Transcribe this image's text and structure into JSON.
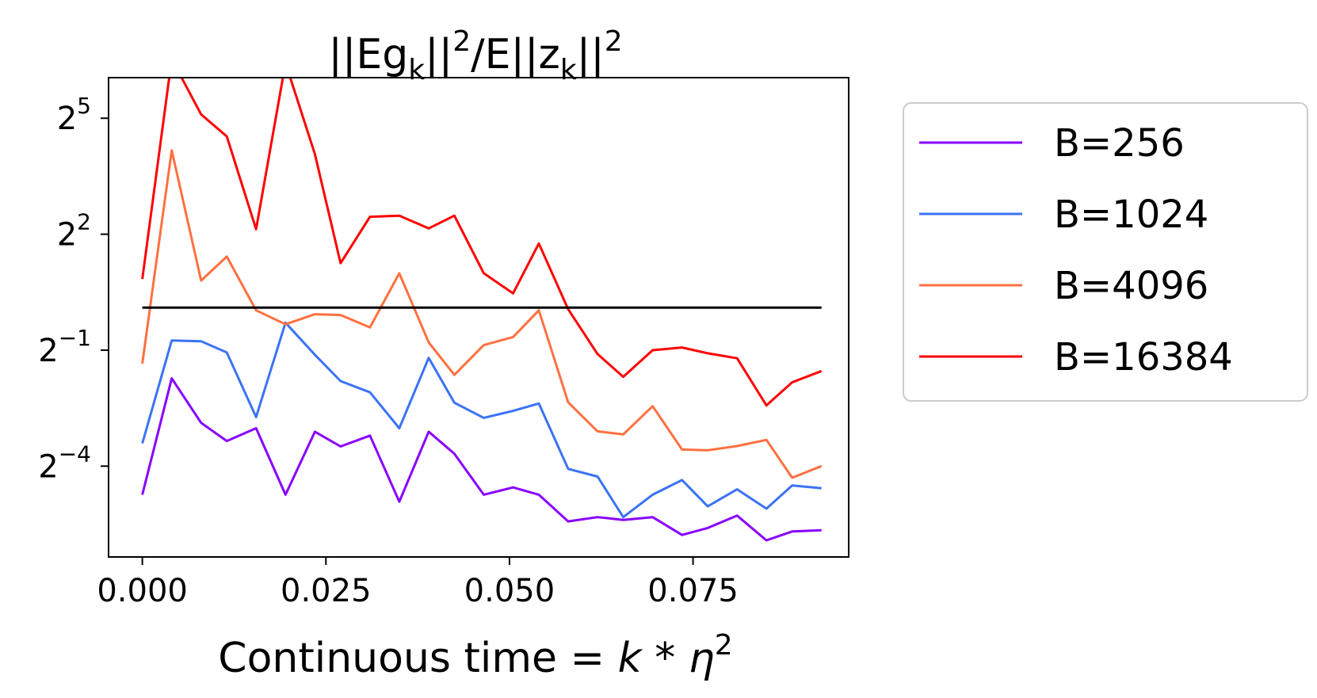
{
  "chart_data": {
    "type": "line",
    "title": "||Eg_k||^2/E||z_k||^2",
    "title_parts": {
      "a": "||Eg",
      "k1": "k",
      "b": "||",
      "sq1": "2",
      "c": "/E||z",
      "k2": "k",
      "d": "||",
      "sq2": "2"
    },
    "xlabel": "Continuous time  = k * η^2",
    "xlabel_parts": {
      "text": "Continuous time ",
      "eq": "= ",
      "k": "k",
      "star": " * ",
      "eta": "η",
      "sq": "2"
    },
    "ylabel": "",
    "y_scale": "log2",
    "xlim": [
      -0.0046,
      0.0962
    ],
    "ylim_log2": [
      -6.35,
      6.05
    ],
    "x_ticks": [
      0.0,
      0.025,
      0.05,
      0.075
    ],
    "x_tick_labels": [
      "0.000",
      "0.025",
      "0.050",
      "0.075"
    ],
    "y_ticks_log2": [
      5,
      2,
      -1,
      -4
    ],
    "y_tick_labels": [
      {
        "base": "2",
        "exp": "5"
      },
      {
        "base": "2",
        "exp": "2"
      },
      {
        "base": "2",
        "exp": "−1"
      },
      {
        "base": "2",
        "exp": "−4"
      }
    ],
    "grid": false,
    "legend_position": "outside-right",
    "x": [
      0.0,
      0.004,
      0.008,
      0.0115,
      0.0155,
      0.0195,
      0.0235,
      0.027,
      0.031,
      0.035,
      0.039,
      0.0425,
      0.0465,
      0.0505,
      0.054,
      0.058,
      0.062,
      0.0655,
      0.0695,
      0.0735,
      0.077,
      0.081,
      0.085,
      0.0885,
      0.0925
    ],
    "series": [
      {
        "name": "B=256",
        "color": "#8800ff",
        "log2_values": [
          -4.74,
          -1.73,
          -2.88,
          -3.35,
          -3.02,
          -4.74,
          -3.11,
          -3.49,
          -3.21,
          -4.92,
          -3.11,
          -3.68,
          -4.74,
          -4.55,
          -4.74,
          -5.43,
          -5.32,
          -5.39,
          -5.32,
          -5.78,
          -5.6,
          -5.28,
          -5.92,
          -5.69,
          -5.66
        ]
      },
      {
        "name": "B=1024",
        "color": "#3b73f5",
        "log2_values": [
          -3.41,
          -0.75,
          -0.77,
          -1.06,
          -2.73,
          -0.29,
          -1.12,
          -1.8,
          -2.09,
          -3.02,
          -1.2,
          -2.36,
          -2.75,
          -2.57,
          -2.38,
          -4.07,
          -4.27,
          -5.32,
          -4.74,
          -4.36,
          -5.04,
          -4.6,
          -5.1,
          -4.5,
          -4.57
        ]
      },
      {
        "name": "B=4096",
        "color": "#ff7040",
        "log2_values": [
          -1.35,
          4.17,
          0.8,
          1.42,
          0.03,
          -0.33,
          -0.07,
          -0.09,
          -0.41,
          0.99,
          -0.8,
          -1.64,
          -0.87,
          -0.66,
          0.03,
          -2.35,
          -3.1,
          -3.18,
          -2.45,
          -3.57,
          -3.59,
          -3.48,
          -3.32,
          -4.3,
          -4.0
        ]
      },
      {
        "name": "B=16384",
        "color": "#ff0000",
        "log2_values": [
          0.84,
          6.53,
          5.1,
          4.53,
          2.13,
          6.43,
          4.07,
          1.25,
          2.45,
          2.48,
          2.15,
          2.48,
          0.99,
          0.47,
          1.76,
          0.06,
          -1.1,
          -1.69,
          -1.0,
          -0.93,
          -1.08,
          -1.21,
          -2.43,
          -1.83,
          -1.54
        ]
      }
    ],
    "hline": {
      "log2_value": 0.1,
      "color": "#000000",
      "x_range": [
        0.0,
        0.0925
      ]
    }
  }
}
